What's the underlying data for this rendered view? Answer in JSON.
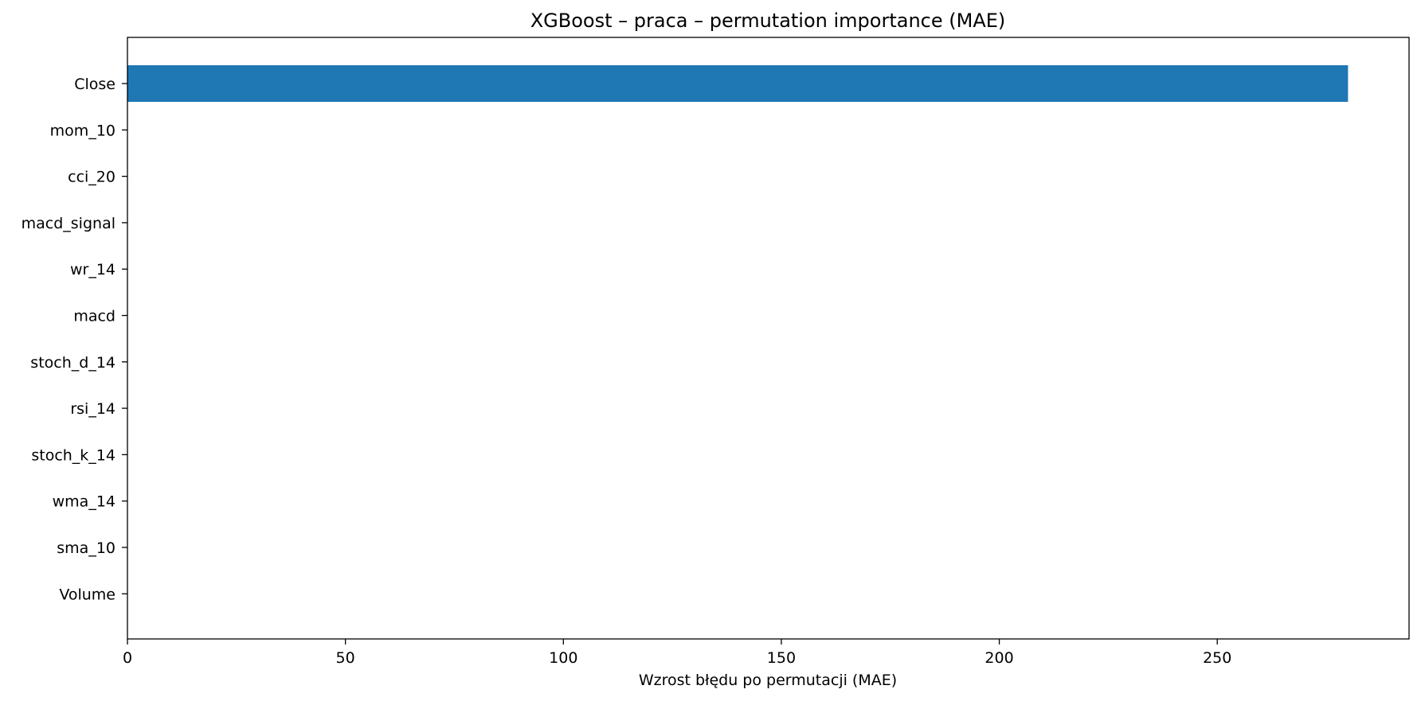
{
  "chart_data": {
    "type": "bar",
    "orientation": "horizontal",
    "title": "XGBoost – praca – permutation importance (MAE)",
    "xlabel": "Wzrost błędu po permutacji (MAE)",
    "ylabel": "",
    "categories": [
      "Close",
      "mom_10",
      "cci_20",
      "macd_signal",
      "wr_14",
      "macd",
      "stoch_d_14",
      "rsi_14",
      "stoch_k_14",
      "wma_14",
      "sma_10",
      "Volume"
    ],
    "values": [
      280,
      0,
      0,
      0,
      0,
      0,
      0,
      0,
      0,
      0,
      0,
      0
    ],
    "xlim": [
      0,
      294
    ],
    "xticks": [
      0,
      50,
      100,
      150,
      200,
      250
    ],
    "grid": false,
    "bar_color": "#1f77b4"
  }
}
